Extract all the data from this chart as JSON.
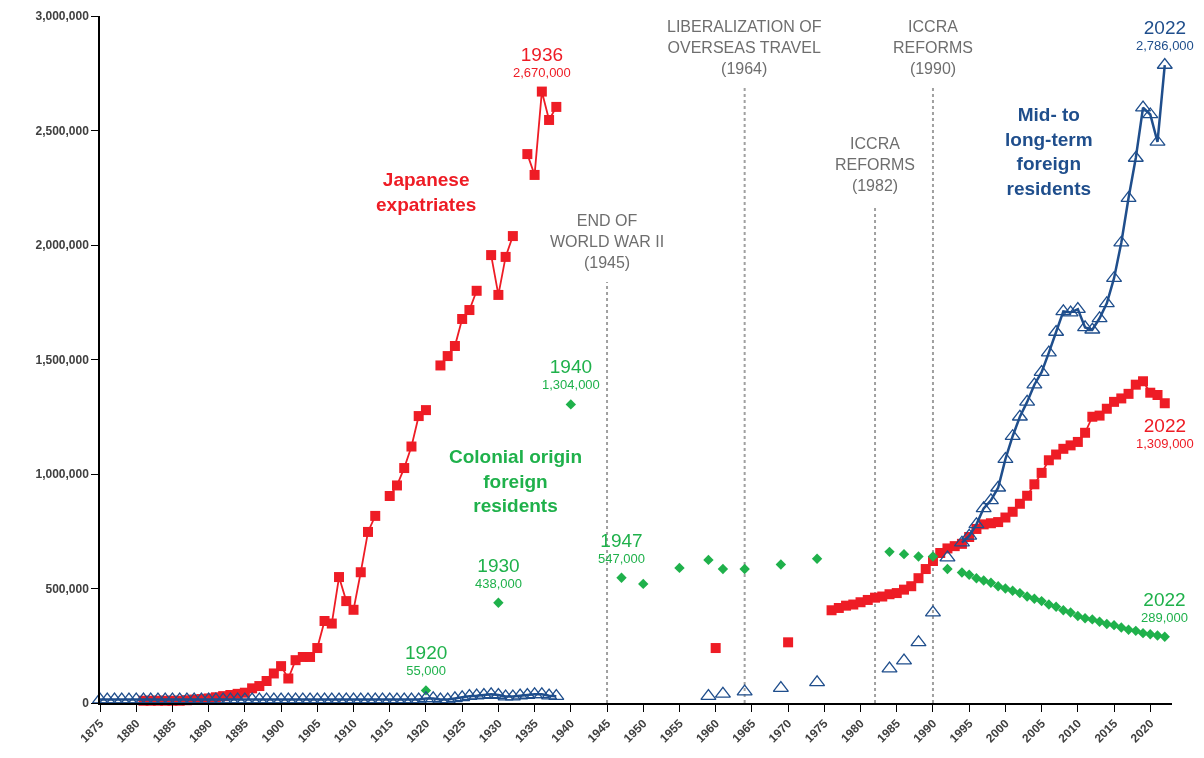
{
  "chart_data": {
    "type": "line",
    "xlim": [
      1875,
      2023
    ],
    "xticks": [
      1875,
      1880,
      1885,
      1890,
      1895,
      1900,
      1905,
      1910,
      1915,
      1920,
      1925,
      1930,
      1935,
      1940,
      1945,
      1950,
      1955,
      1960,
      1965,
      1970,
      1975,
      1980,
      1985,
      1990,
      1995,
      2000,
      2005,
      2010,
      2015,
      2020
    ],
    "ylim": [
      0,
      3000000
    ],
    "yticks": [
      {
        "value": 0,
        "label": "0"
      },
      {
        "value": 500000,
        "label": "500,000"
      },
      {
        "value": 1000000,
        "label": "1,000,000"
      },
      {
        "value": 1500000,
        "label": "1,500,000"
      },
      {
        "value": 2000000,
        "label": "2,000,000"
      },
      {
        "value": 2500000,
        "label": "2,500,000"
      },
      {
        "value": 3000000,
        "label": "3,000,000"
      }
    ],
    "grid": false,
    "legend": false,
    "series": [
      {
        "name": "Japanese expatriates",
        "marker": "square",
        "color": "#ee1c25",
        "x": [
          1881,
          1882,
          1883,
          1884,
          1885,
          1886,
          1887,
          1888,
          1889,
          1890,
          1891,
          1892,
          1893,
          1894,
          1895,
          1896,
          1897,
          1898,
          1899,
          1900,
          1901,
          1902,
          1903,
          1904,
          1905,
          1906,
          1907,
          1908,
          1909,
          1910,
          1911,
          1912,
          1913,
          1914,
          1915,
          1916,
          1917,
          1918,
          1919,
          1920,
          1921,
          1922,
          1923,
          1924,
          1925,
          1926,
          1927,
          1928,
          1929,
          1930,
          1931,
          1932,
          1933,
          1934,
          1935,
          1936,
          1937,
          1938,
          1939,
          1960,
          1961,
          1970,
          1971,
          1976,
          1977,
          1978,
          1979,
          1980,
          1981,
          1982,
          1983,
          1984,
          1985,
          1986,
          1987,
          1988,
          1989,
          1990,
          1991,
          1992,
          1993,
          1994,
          1995,
          1996,
          1997,
          1998,
          1999,
          2000,
          2001,
          2002,
          2003,
          2004,
          2005,
          2006,
          2007,
          2008,
          2009,
          2010,
          2011,
          2012,
          2013,
          2014,
          2015,
          2016,
          2017,
          2018,
          2019,
          2020,
          2021,
          2022
        ],
        "values": [
          10000,
          10000,
          10000,
          10000,
          10000,
          10000,
          12000,
          15000,
          17000,
          20000,
          25000,
          30000,
          35000,
          40000,
          45000,
          64000,
          74000,
          96000,
          129000,
          161000,
          107000,
          187000,
          201000,
          201000,
          240000,
          358000,
          347000,
          550000,
          445000,
          407000,
          571000,
          747000,
          817000,
          null,
          904000,
          950000,
          1026000,
          1120000,
          1253000,
          1279000,
          null,
          1474000,
          1515000,
          1559000,
          1677000,
          1716000,
          1800000,
          null,
          1956000,
          1782000,
          1948000,
          2039000,
          null,
          2397000,
          2306000,
          2670000,
          2546000,
          2603000,
          null,
          240000,
          null,
          265000,
          null,
          405000,
          415000,
          425000,
          430000,
          440000,
          450000,
          460000,
          465000,
          475000,
          480000,
          495000,
          510000,
          545000,
          585000,
          620000,
          655000,
          675000,
          685000,
          695000,
          725000,
          760000,
          780000,
          785000,
          790000,
          810000,
          835000,
          870000,
          905000,
          955000,
          1005000,
          1060000,
          1085000,
          1110000,
          1125000,
          1140000,
          1180000,
          1250000,
          1255000,
          1285000,
          1315000,
          1330000,
          1350000,
          1390000,
          1405000,
          1355000,
          1345000,
          1309000
        ]
      },
      {
        "name": "Colonial origin foreign residents",
        "type": "scatter",
        "marker": "diamond",
        "color": "#1fb14b",
        "x": [
          1920,
          1930,
          1940,
          1947,
          1950,
          1955,
          1959,
          1961,
          1964,
          1969,
          1974,
          1984,
          1986,
          1988,
          1990,
          1992,
          1994,
          1995,
          1996,
          1997,
          1998,
          1999,
          2000,
          2001,
          2002,
          2003,
          2004,
          2005,
          2006,
          2007,
          2008,
          2009,
          2010,
          2011,
          2012,
          2013,
          2014,
          2015,
          2016,
          2017,
          2018,
          2019,
          2020,
          2021,
          2022
        ],
        "values": [
          55000,
          438000,
          1304000,
          547000,
          520000,
          590000,
          625000,
          585000,
          585000,
          605000,
          630000,
          660000,
          650000,
          640000,
          640000,
          585000,
          570000,
          560000,
          545000,
          535000,
          525000,
          510000,
          500000,
          490000,
          480000,
          465000,
          455000,
          445000,
          430000,
          420000,
          405000,
          395000,
          380000,
          370000,
          365000,
          355000,
          345000,
          340000,
          330000,
          320000,
          315000,
          305000,
          300000,
          295000,
          289000
        ]
      },
      {
        "name": "Mid- to long-term foreign residents",
        "marker": "triangle",
        "color": "#1f4e8c",
        "x": [
          1875,
          1876,
          1877,
          1878,
          1879,
          1880,
          1881,
          1882,
          1883,
          1884,
          1885,
          1886,
          1887,
          1888,
          1889,
          1890,
          1891,
          1892,
          1893,
          1894,
          1895,
          1896,
          1897,
          1898,
          1899,
          1900,
          1901,
          1902,
          1903,
          1904,
          1905,
          1906,
          1907,
          1908,
          1909,
          1910,
          1911,
          1912,
          1913,
          1914,
          1915,
          1916,
          1917,
          1918,
          1919,
          1920,
          1921,
          1922,
          1923,
          1924,
          1925,
          1926,
          1927,
          1928,
          1929,
          1930,
          1931,
          1932,
          1933,
          1934,
          1935,
          1936,
          1937,
          1938,
          1939,
          1959,
          1960,
          1961,
          1962,
          1964,
          1965,
          1969,
          1970,
          1974,
          1975,
          1984,
          1985,
          1986,
          1987,
          1988,
          1989,
          1990,
          1991,
          1992,
          1993,
          1994,
          1995,
          1996,
          1997,
          1998,
          1999,
          2000,
          2001,
          2002,
          2003,
          2004,
          2005,
          2006,
          2007,
          2008,
          2009,
          2010,
          2011,
          2012,
          2013,
          2014,
          2015,
          2016,
          2017,
          2018,
          2019,
          2020,
          2021,
          2022
        ],
        "values": [
          15000,
          15000,
          15000,
          15000,
          15000,
          15000,
          15000,
          15000,
          15000,
          15000,
          15000,
          15000,
          15000,
          15000,
          15000,
          15000,
          15000,
          15000,
          15000,
          15000,
          15000,
          15000,
          15000,
          15000,
          15000,
          15000,
          15000,
          15000,
          15000,
          15000,
          15000,
          15000,
          15000,
          15000,
          15000,
          15000,
          15000,
          15000,
          15000,
          15000,
          15000,
          15000,
          15000,
          15000,
          15000,
          20000,
          20000,
          15000,
          15000,
          20000,
          25000,
          30000,
          32000,
          35000,
          38000,
          35000,
          28000,
          28000,
          32000,
          35000,
          38000,
          38000,
          32000,
          30000,
          null,
          30000,
          null,
          40000,
          null,
          50000,
          null,
          65000,
          null,
          90000,
          null,
          150000,
          null,
          185000,
          null,
          265000,
          null,
          395000,
          null,
          635000,
          null,
          700000,
          730000,
          780000,
          850000,
          885000,
          940000,
          1065000,
          1165000,
          1250000,
          1315000,
          1390000,
          1445000,
          1530000,
          1620000,
          1710000,
          1705000,
          1720000,
          1640000,
          1630000,
          1680000,
          1745000,
          1855000,
          2010000,
          2205000,
          2380000,
          2600000,
          2570000,
          2450000,
          2786000
        ]
      }
    ],
    "ref_lines": [
      {
        "axis": "x",
        "value": 1945,
        "label": "END OF\nWORLD WAR II\n(1945)",
        "color": "#a0a0a0",
        "line_style": "dotted"
      },
      {
        "axis": "x",
        "value": 1964,
        "label": "LIBERALIZATION OF\nOVERSEAS TRAVEL\n(1964)",
        "color": "#a0a0a0",
        "line_style": "dotted"
      },
      {
        "axis": "x",
        "value": 1982,
        "label": "ICCRA\nREFORMS\n(1982)",
        "color": "#a0a0a0",
        "line_style": "dotted"
      },
      {
        "axis": "x",
        "value": 1990,
        "label": "ICCRA\nREFORMS\n(1990)",
        "color": "#a0a0a0",
        "line_style": "dotted"
      }
    ],
    "annotations": [
      {
        "text": "1936\n2,670,000",
        "x": 1936,
        "y": 2670000
      },
      {
        "text": "1940\n1,304,000",
        "x": 1940,
        "y": 1304000
      },
      {
        "text": "1930\n438,000",
        "x": 1930,
        "y": 438000
      },
      {
        "text": "1920\n55,000",
        "x": 1920,
        "y": 55000
      },
      {
        "text": "1947\n547,000",
        "x": 1947,
        "y": 547000
      },
      {
        "text": "2022\n1,309,000",
        "x": 2022,
        "y": 1309000
      },
      {
        "text": "2022\n289,000",
        "x": 2022,
        "y": 289000
      },
      {
        "text": "2022\n2,786,000",
        "x": 2022,
        "y": 2786000
      }
    ]
  }
}
